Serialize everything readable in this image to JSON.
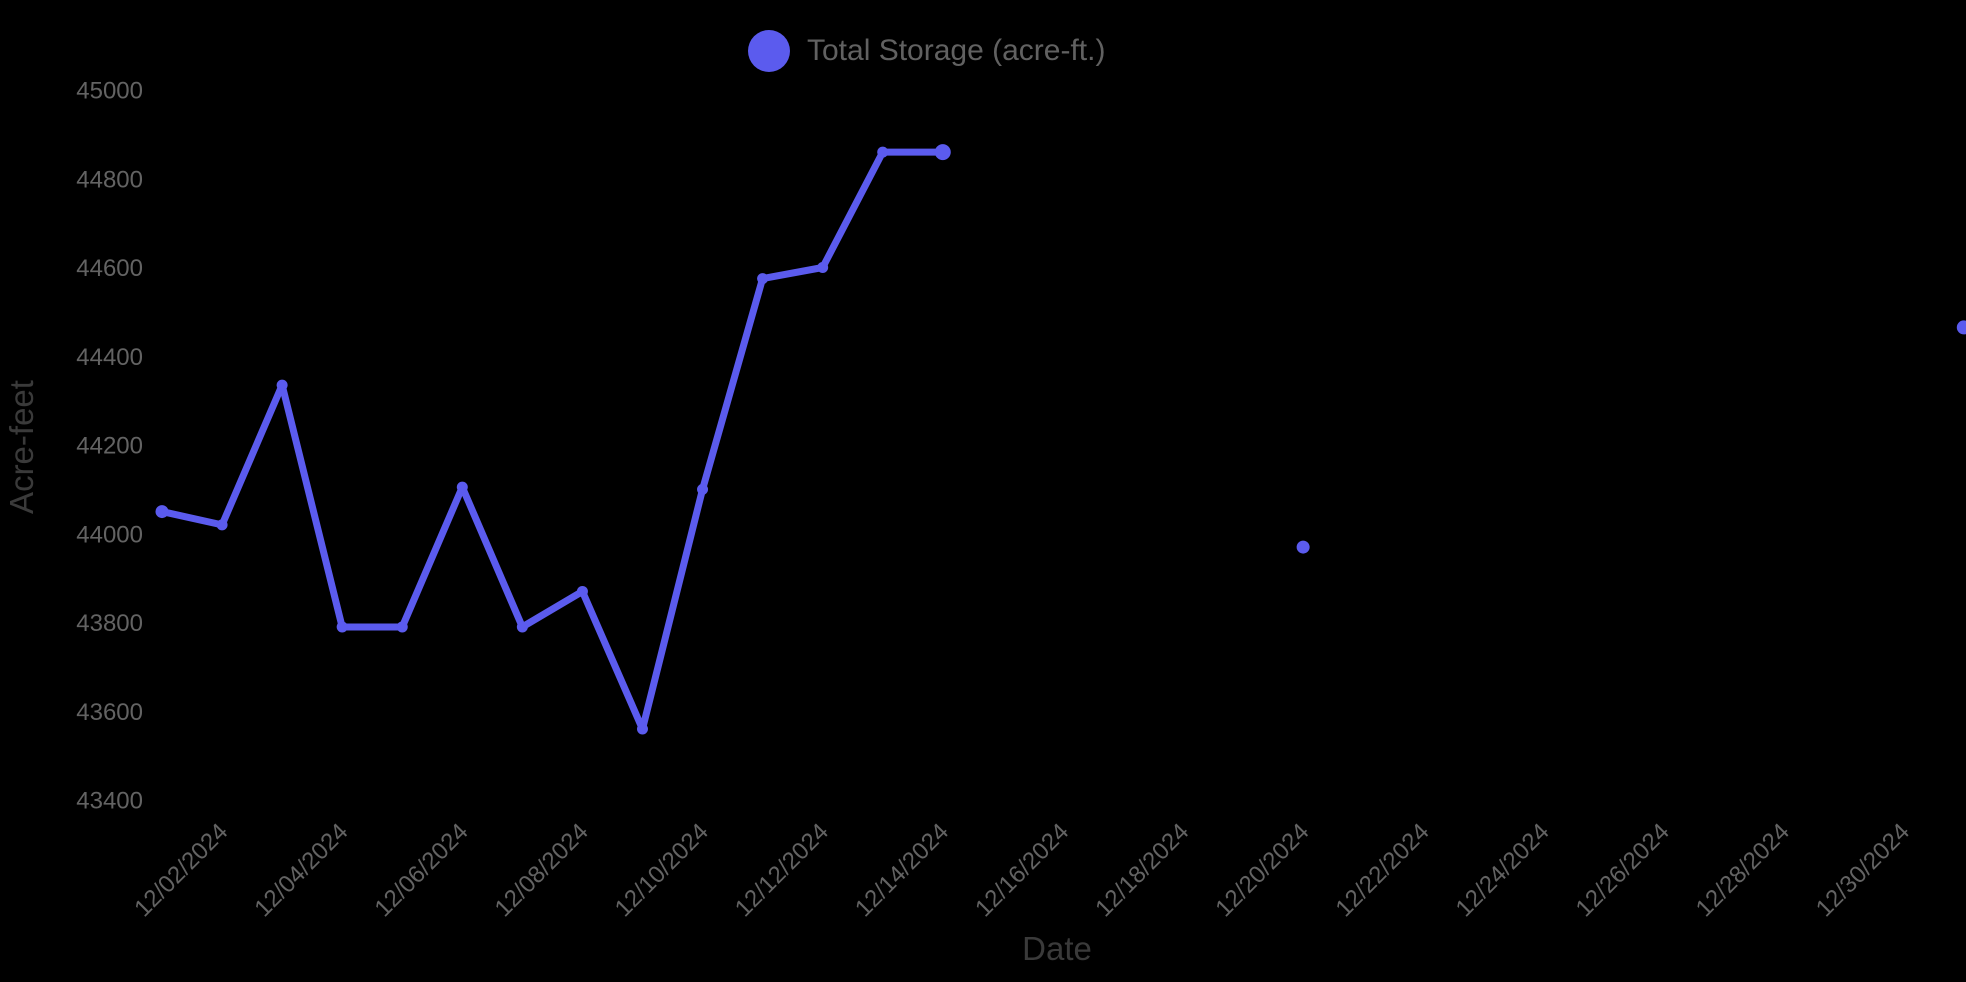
{
  "page": {
    "background": "#000000"
  },
  "legend": {
    "label": "Total Storage (acre-ft.)",
    "marker_color": "#5b5bee",
    "text_color": "#616161"
  },
  "chart_data": {
    "type": "line",
    "title": "",
    "xlabel": "Date",
    "ylabel": "Acre-feet",
    "grid": false,
    "legend_position": "top-center",
    "ylim": [
      43400,
      45000
    ],
    "x_day_range": [
      1,
      31
    ],
    "y_ticks": [
      43400,
      43600,
      43800,
      44000,
      44200,
      44400,
      44600,
      44800,
      45000
    ],
    "x_ticks": [
      {
        "day": 2,
        "label": "12/02/2024"
      },
      {
        "day": 4,
        "label": "12/04/2024"
      },
      {
        "day": 6,
        "label": "12/06/2024"
      },
      {
        "day": 8,
        "label": "12/08/2024"
      },
      {
        "day": 10,
        "label": "12/10/2024"
      },
      {
        "day": 12,
        "label": "12/12/2024"
      },
      {
        "day": 14,
        "label": "12/14/2024"
      },
      {
        "day": 16,
        "label": "12/16/2024"
      },
      {
        "day": 18,
        "label": "12/18/2024"
      },
      {
        "day": 20,
        "label": "12/20/2024"
      },
      {
        "day": 22,
        "label": "12/22/2024"
      },
      {
        "day": 24,
        "label": "12/24/2024"
      },
      {
        "day": 26,
        "label": "12/26/2024"
      },
      {
        "day": 28,
        "label": "12/28/2024"
      },
      {
        "day": 30,
        "label": "12/30/2024"
      }
    ],
    "colors": {
      "series": "#5b5bee",
      "tick_label": "#636363",
      "axis_title": "#3a3a3a",
      "background": "#000000"
    },
    "series": [
      {
        "name": "Total Storage (acre-ft.)",
        "color": "#5b5bee",
        "points": [
          {
            "date": "12/01/2024",
            "day": 1,
            "value": 44050,
            "r": 6.5
          },
          {
            "date": "12/02/2024",
            "day": 2,
            "value": 44020
          },
          {
            "date": "12/03/2024",
            "day": 3,
            "value": 44335
          },
          {
            "date": "12/04/2024",
            "day": 4,
            "value": 43790
          },
          {
            "date": "12/05/2024",
            "day": 5,
            "value": 43790
          },
          {
            "date": "12/06/2024",
            "day": 6,
            "value": 44105
          },
          {
            "date": "12/07/2024",
            "day": 7,
            "value": 43790
          },
          {
            "date": "12/08/2024",
            "day": 8,
            "value": 43870
          },
          {
            "date": "12/09/2024",
            "day": 9,
            "value": 43560
          },
          {
            "date": "12/10/2024",
            "day": 10,
            "value": 44100
          },
          {
            "date": "12/11/2024",
            "day": 11,
            "value": 44575
          },
          {
            "date": "12/12/2024",
            "day": 12,
            "value": 44600
          },
          {
            "date": "12/13/2024",
            "day": 13,
            "value": 44860
          },
          {
            "date": "12/14/2024",
            "day": 14,
            "value": 44860,
            "r": 8
          },
          {
            "date": "12/20/2024",
            "day": 20,
            "value": 43970,
            "r": 6.5
          },
          {
            "date": "12/31/2024",
            "day": 31,
            "value": 44465,
            "r": 7
          }
        ]
      }
    ]
  }
}
